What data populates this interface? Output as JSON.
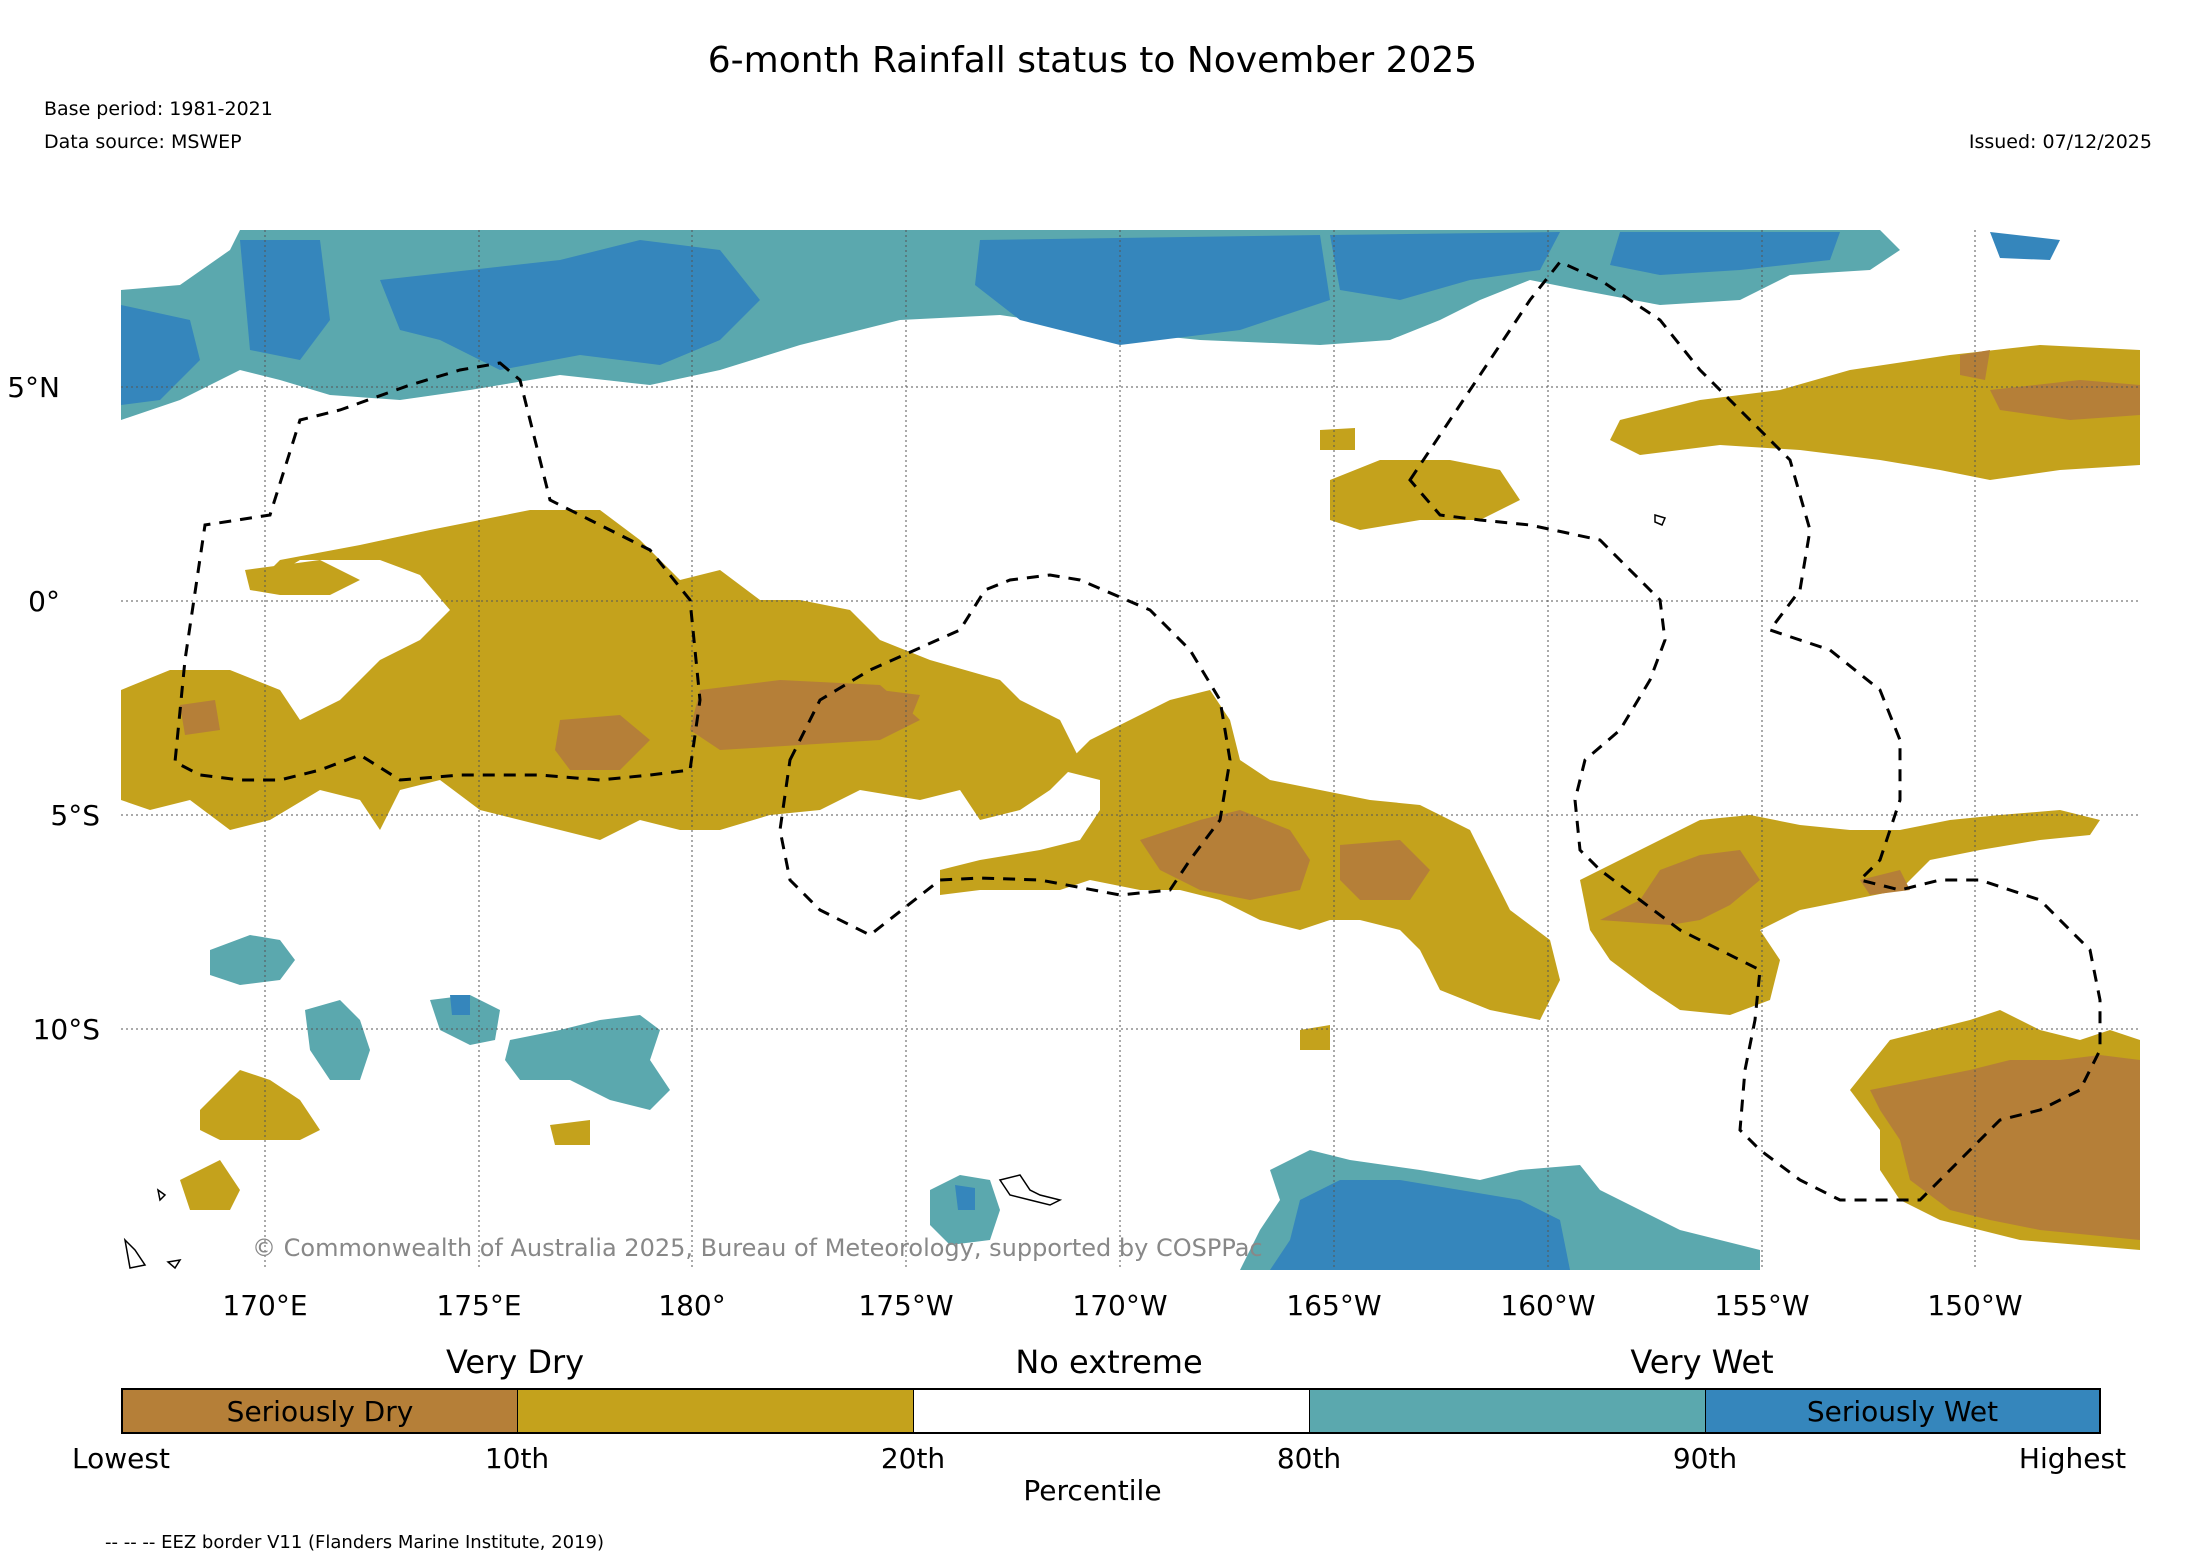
{
  "title": "6-month Rainfall status to November 2025",
  "base_period": "Base period: 1981-2021",
  "data_source": "Data source: MSWEP",
  "issued": "Issued: 07/12/2025",
  "copyright": "© Commonwealth of Australia 2025, Bureau of Meteorology, supported by COSPPac",
  "lat_labels": [
    "5°N",
    "0°",
    "5°S",
    "10°S"
  ],
  "lon_labels": [
    "170°E",
    "175°E",
    "180°",
    "175°W",
    "170°W",
    "165°W",
    "160°W",
    "155°W",
    "150°W"
  ],
  "legend": {
    "headers": [
      "Very Dry",
      "No extreme",
      "Very Wet"
    ],
    "cells": [
      {
        "label": "Seriously Dry",
        "color": "#b57f38"
      },
      {
        "label": "",
        "color": "#c4a21c"
      },
      {
        "label": "",
        "color": "#ffffff"
      },
      {
        "label": "",
        "color": "#5ba8ae"
      },
      {
        "label": "Seriously Wet",
        "color": "#3586bc"
      }
    ],
    "ticks": [
      "Lowest",
      "10th",
      "20th",
      "80th",
      "90th",
      "Highest"
    ],
    "axis_label": "Percentile"
  },
  "eez_note": "-- -- -- EEZ border V11 (Flanders Marine Institute, 2019)",
  "colors": {
    "seriously_dry": "#b57f38",
    "very_dry": "#c4a21c",
    "very_wet": "#5ba8ae",
    "seriously_wet": "#3586bc"
  }
}
